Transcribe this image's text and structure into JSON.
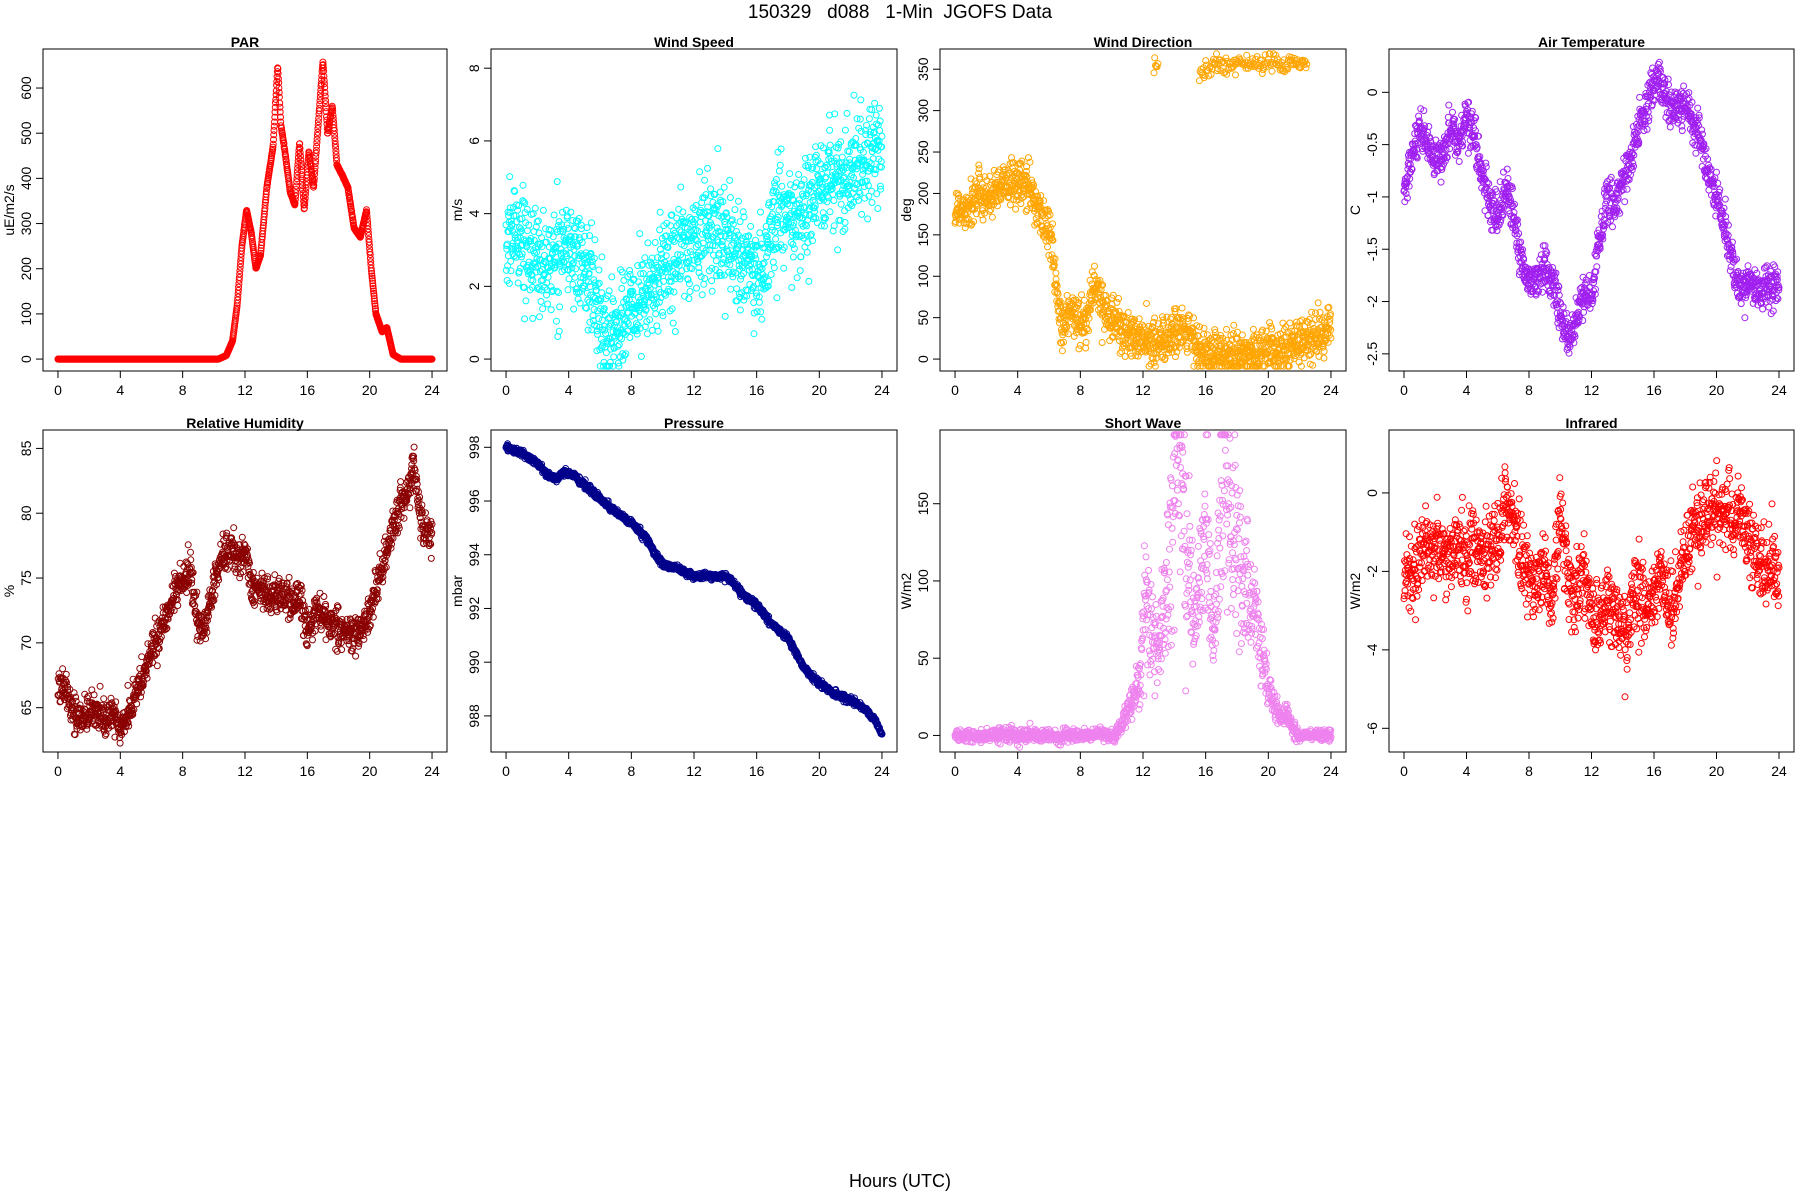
{
  "page": {
    "title": "150329   d088   1-Min  JGOFS Data",
    "x_caption": "Hours (UTC)"
  },
  "chart_data": [
    {
      "type": "scatter",
      "title": "PAR",
      "ylabel": "uE/m2/s",
      "color": "#ff0000",
      "xlim": [
        0,
        24
      ],
      "ylim": [
        0,
        660
      ],
      "xticks": [
        0,
        4,
        8,
        12,
        16,
        20,
        24
      ],
      "yticks": [
        0,
        100,
        200,
        300,
        400,
        500,
        600
      ],
      "noise": 0.03,
      "noise_amp": 0,
      "x": [
        0,
        10.3,
        10.8,
        11.2,
        11.5,
        11.8,
        12.1,
        12.4,
        12.7,
        13.0,
        13.4,
        13.8,
        14.1,
        14.3,
        14.6,
        14.9,
        15.2,
        15.5,
        15.8,
        16.1,
        16.4,
        16.7,
        17.0,
        17.3,
        17.6,
        17.9,
        18.2,
        18.6,
        19.0,
        19.4,
        19.8,
        20.1,
        20.4,
        20.8,
        21.1,
        21.5,
        22.0,
        24
      ],
      "y": [
        0,
        0,
        8,
        40,
        120,
        250,
        330,
        280,
        200,
        230,
        380,
        470,
        650,
        520,
        450,
        370,
        340,
        480,
        330,
        460,
        380,
        520,
        660,
        500,
        560,
        430,
        410,
        380,
        290,
        270,
        330,
        200,
        100,
        60,
        70,
        10,
        0,
        0
      ]
    },
    {
      "type": "scatter",
      "title": "Wind Speed",
      "ylabel": "m/s",
      "color": "#00ffff",
      "xlim": [
        0,
        24
      ],
      "ylim": [
        0,
        8.2
      ],
      "xticks": [
        0,
        4,
        8,
        12,
        16,
        20,
        24
      ],
      "yticks": [
        0,
        2,
        4,
        6,
        8
      ],
      "noise": 0.7,
      "noise_amp": 0,
      "x": [
        0,
        0.6,
        1.2,
        2.0,
        2.8,
        3.6,
        4.4,
        5.2,
        5.8,
        6.3,
        7.0,
        7.8,
        8.6,
        9.5,
        10.4,
        11.2,
        12.0,
        12.8,
        13.5,
        14.2,
        15.0,
        15.8,
        16.4,
        17.0,
        17.6,
        18.3,
        19.0,
        19.8,
        20.6,
        21.5,
        22.5,
        23.3,
        24
      ],
      "y": [
        3.0,
        3.6,
        3.2,
        2.7,
        2.5,
        3.2,
        2.8,
        2.4,
        1.5,
        0.6,
        0.9,
        1.2,
        1.6,
        2.0,
        2.8,
        3.0,
        3.2,
        3.6,
        3.6,
        3.3,
        2.8,
        2.1,
        2.3,
        3.7,
        4.1,
        3.6,
        3.9,
        4.6,
        4.8,
        5.0,
        5.3,
        5.7,
        5.6
      ]
    },
    {
      "type": "scatter",
      "title": "Wind Direction",
      "ylabel": "deg",
      "color": "#ffa500",
      "xlim": [
        0,
        24
      ],
      "ylim": [
        0,
        360
      ],
      "xticks": [
        0,
        4,
        8,
        12,
        16,
        20,
        24
      ],
      "yticks": [
        0,
        50,
        100,
        150,
        200,
        250,
        300,
        350
      ],
      "noise": 14,
      "noise_amp": 0,
      "x": [
        0,
        0.8,
        1.6,
        2.4,
        3.2,
        4.0,
        4.8,
        5.6,
        6.2,
        6.5,
        6.8,
        7.2,
        7.8,
        8.4,
        8.9,
        9.5,
        10.3,
        11.2,
        12.2,
        13.2,
        14.2,
        15.0,
        15.8,
        16.5,
        17.5,
        18.5,
        19.5,
        20.5,
        21.5,
        22.5,
        23.3,
        24
      ],
      "y": [
        180,
        185,
        200,
        195,
        210,
        215,
        205,
        170,
        140,
        80,
        30,
        55,
        50,
        45,
        95,
        60,
        45,
        25,
        22,
        20,
        35,
        30,
        5,
        3,
        5,
        5,
        8,
        10,
        15,
        20,
        30,
        40
      ],
      "extra": {
        "x": [
          12.7,
          13.0,
          15.6,
          15.9,
          16.2,
          16.6,
          17.2,
          18.0,
          19.0,
          20.0,
          21.0,
          22.0,
          22.5
        ],
        "y": [
          355,
          358,
          345,
          348,
          345,
          358,
          356,
          358,
          357,
          358,
          356,
          357,
          358
        ],
        "noise": 6
      }
    },
    {
      "type": "scatter",
      "title": "Air Temperature",
      "ylabel": "C",
      "color": "#a020f0",
      "xlim": [
        0,
        24
      ],
      "ylim": [
        -2.55,
        0.3
      ],
      "xticks": [
        0,
        4,
        8,
        12,
        16,
        20,
        24
      ],
      "yticks": [
        -2.5,
        -2.0,
        -1.5,
        -1.0,
        -0.5,
        0.0
      ],
      "noise": 0.1,
      "noise_amp": 0,
      "x": [
        0,
        0.5,
        1.0,
        1.5,
        2.0,
        2.5,
        3.0,
        3.5,
        4.0,
        4.5,
        5.0,
        5.5,
        6.0,
        6.5,
        7.0,
        7.5,
        8.0,
        8.5,
        9.0,
        9.5,
        10.0,
        10.5,
        11.0,
        11.5,
        12.0,
        12.5,
        13.0,
        13.5,
        14.0,
        14.5,
        15.0,
        15.5,
        16.0,
        16.5,
        17.0,
        17.5,
        18.0,
        18.5,
        19.0,
        19.5,
        20.0,
        20.5,
        21.0,
        21.5,
        22.0,
        22.5,
        23.0,
        23.5,
        24
      ],
      "y": [
        -1.0,
        -0.6,
        -0.4,
        -0.5,
        -0.7,
        -0.6,
        -0.3,
        -0.5,
        -0.2,
        -0.4,
        -0.8,
        -1.1,
        -1.2,
        -0.9,
        -1.2,
        -1.6,
        -1.8,
        -1.8,
        -1.65,
        -1.8,
        -2.1,
        -2.4,
        -2.2,
        -1.9,
        -2.0,
        -1.4,
        -1.0,
        -1.1,
        -0.8,
        -0.7,
        -0.3,
        -0.2,
        0.1,
        0.05,
        -0.1,
        -0.2,
        -0.1,
        -0.3,
        -0.5,
        -0.8,
        -1.0,
        -1.3,
        -1.6,
        -1.9,
        -1.8,
        -1.9,
        -1.9,
        -1.85,
        -1.85
      ]
    },
    {
      "type": "scatter",
      "title": "Relative Humidity",
      "ylabel": "%",
      "color": "#8b0000",
      "xlim": [
        0,
        24
      ],
      "ylim": [
        62.5,
        85.5
      ],
      "xticks": [
        0,
        4,
        8,
        12,
        16,
        20,
        24
      ],
      "yticks": [
        65,
        70,
        75,
        80,
        85
      ],
      "noise": 0.7,
      "noise_amp": 0,
      "x": [
        0,
        0.5,
        1.0,
        1.5,
        2.0,
        2.5,
        3.0,
        3.5,
        4.0,
        4.5,
        5.0,
        5.5,
        6.0,
        6.5,
        7.0,
        7.5,
        8.0,
        8.5,
        9.0,
        9.5,
        10.0,
        10.5,
        11.0,
        11.5,
        12.0,
        12.5,
        13.0,
        13.5,
        14.0,
        14.5,
        15.0,
        15.5,
        16.0,
        16.5,
        17.0,
        17.5,
        18.0,
        18.5,
        19.0,
        19.5,
        20.0,
        20.5,
        21.0,
        21.5,
        22.0,
        22.5,
        22.8,
        23.2,
        23.5,
        24
      ],
      "y": [
        66.5,
        67.0,
        64.5,
        64.0,
        64.5,
        65.0,
        64.0,
        64.5,
        63.5,
        64.5,
        66.0,
        67.5,
        69.5,
        70.5,
        72.5,
        73.5,
        75.0,
        75.5,
        71.0,
        71.5,
        74.5,
        76.5,
        77.5,
        76.5,
        77.0,
        74.0,
        74.5,
        73.5,
        74.0,
        73.5,
        73.0,
        73.5,
        71.0,
        72.5,
        72.0,
        71.5,
        71.0,
        71.0,
        70.5,
        71.0,
        72.0,
        74.5,
        76.5,
        79.0,
        81.0,
        81.5,
        84.0,
        80.0,
        78.5,
        78.5
      ]
    },
    {
      "type": "scatter",
      "title": "Pressure",
      "ylabel": "mbar",
      "color": "#00008b",
      "xlim": [
        0,
        24
      ],
      "ylim": [
        987.1,
        998.2
      ],
      "xticks": [
        0,
        4,
        8,
        12,
        16,
        20,
        24
      ],
      "yticks": [
        988,
        990,
        992,
        994,
        996,
        998
      ],
      "noise": 0.06,
      "noise_amp": 0.22,
      "x": [
        0,
        1.0,
        2.0,
        2.6,
        3.2,
        3.8,
        4.4,
        5.0,
        6.0,
        7.0,
        8.0,
        9.0,
        9.6,
        10.2,
        11.0,
        12.0,
        13.0,
        14.0,
        14.6,
        15.2,
        16.0,
        17.0,
        18.0,
        19.0,
        20.0,
        21.0,
        22.0,
        23.0,
        23.5,
        24
      ],
      "y": [
        998.0,
        997.8,
        997.4,
        997.0,
        996.8,
        997.1,
        996.9,
        996.6,
        996.1,
        995.6,
        995.2,
        994.6,
        993.9,
        993.6,
        993.5,
        993.2,
        993.2,
        993.2,
        992.9,
        992.5,
        992.1,
        991.4,
        990.9,
        989.8,
        989.2,
        988.8,
        988.6,
        988.2,
        987.9,
        987.3
      ]
    },
    {
      "type": "scatter",
      "title": "Short Wave",
      "ylabel": "W/m2",
      "color": "#ee82ee",
      "xlim": [
        0,
        24
      ],
      "ylim": [
        -3,
        190
      ],
      "xticks": [
        0,
        4,
        8,
        12,
        16,
        20,
        24
      ],
      "yticks": [
        0,
        50,
        100,
        150
      ],
      "noise": 4,
      "noise_amp": 0,
      "x": [
        0,
        6.2,
        6.6,
        7.0,
        8.0,
        9.0,
        10.2,
        10.8,
        11.4,
        11.8,
        12.2,
        12.6,
        13.0,
        13.4,
        13.8,
        14.2,
        14.5,
        14.9,
        15.3,
        15.7,
        16.1,
        16.5,
        16.9,
        17.2,
        17.5,
        17.9,
        18.3,
        18.7,
        19.1,
        19.6,
        20.0,
        20.4,
        20.8,
        21.2,
        21.6,
        22.0,
        24
      ],
      "y": [
        0,
        0,
        -2,
        0,
        0,
        1,
        0,
        10,
        25,
        40,
        100,
        60,
        55,
        90,
        130,
        180,
        150,
        110,
        80,
        100,
        130,
        60,
        120,
        185,
        140,
        130,
        100,
        90,
        80,
        50,
        30,
        20,
        10,
        15,
        3,
        0,
        0
      ]
    },
    {
      "type": "scatter",
      "title": "Infrared",
      "ylabel": "W/m2",
      "color": "#ff0000",
      "xlim": [
        0,
        24
      ],
      "ylim": [
        -6.3,
        1.3
      ],
      "xticks": [
        0,
        4,
        8,
        12,
        16,
        20,
        24
      ],
      "yticks": [
        -6,
        -4,
        -2,
        0
      ],
      "noise": 0.5,
      "noise_amp": 0,
      "x": [
        0,
        0.5,
        1.0,
        1.5,
        2.0,
        2.5,
        3.0,
        3.5,
        4.0,
        4.5,
        5.0,
        5.5,
        6.0,
        6.5,
        7.0,
        7.5,
        8.0,
        8.5,
        9.0,
        9.5,
        10.0,
        10.5,
        11.0,
        11.5,
        12.0,
        12.5,
        13.0,
        13.5,
        14.0,
        14.3,
        14.6,
        15.0,
        15.5,
        16.0,
        16.5,
        17.0,
        17.5,
        18.0,
        18.5,
        19.0,
        19.5,
        20.0,
        20.5,
        21.0,
        21.5,
        22.0,
        22.5,
        23.0,
        23.5,
        24
      ],
      "y": [
        -2.0,
        -2.2,
        -1.5,
        -1.4,
        -1.3,
        -1.5,
        -1.4,
        -1.6,
        -1.5,
        -1.4,
        -1.6,
        -1.5,
        -1.2,
        -0.2,
        -0.6,
        -1.8,
        -2.2,
        -2.3,
        -2.0,
        -2.8,
        -0.5,
        -2.4,
        -2.5,
        -2.0,
        -3.0,
        -3.2,
        -2.6,
        -3.0,
        -3.2,
        -4.0,
        -2.6,
        -2.4,
        -3.0,
        -2.6,
        -1.9,
        -3.0,
        -2.5,
        -1.5,
        -1.0,
        -0.6,
        -0.5,
        -0.4,
        -0.5,
        -0.8,
        -0.4,
        -1.2,
        -1.5,
        -2.0,
        -1.8,
        -2.0
      ]
    }
  ]
}
